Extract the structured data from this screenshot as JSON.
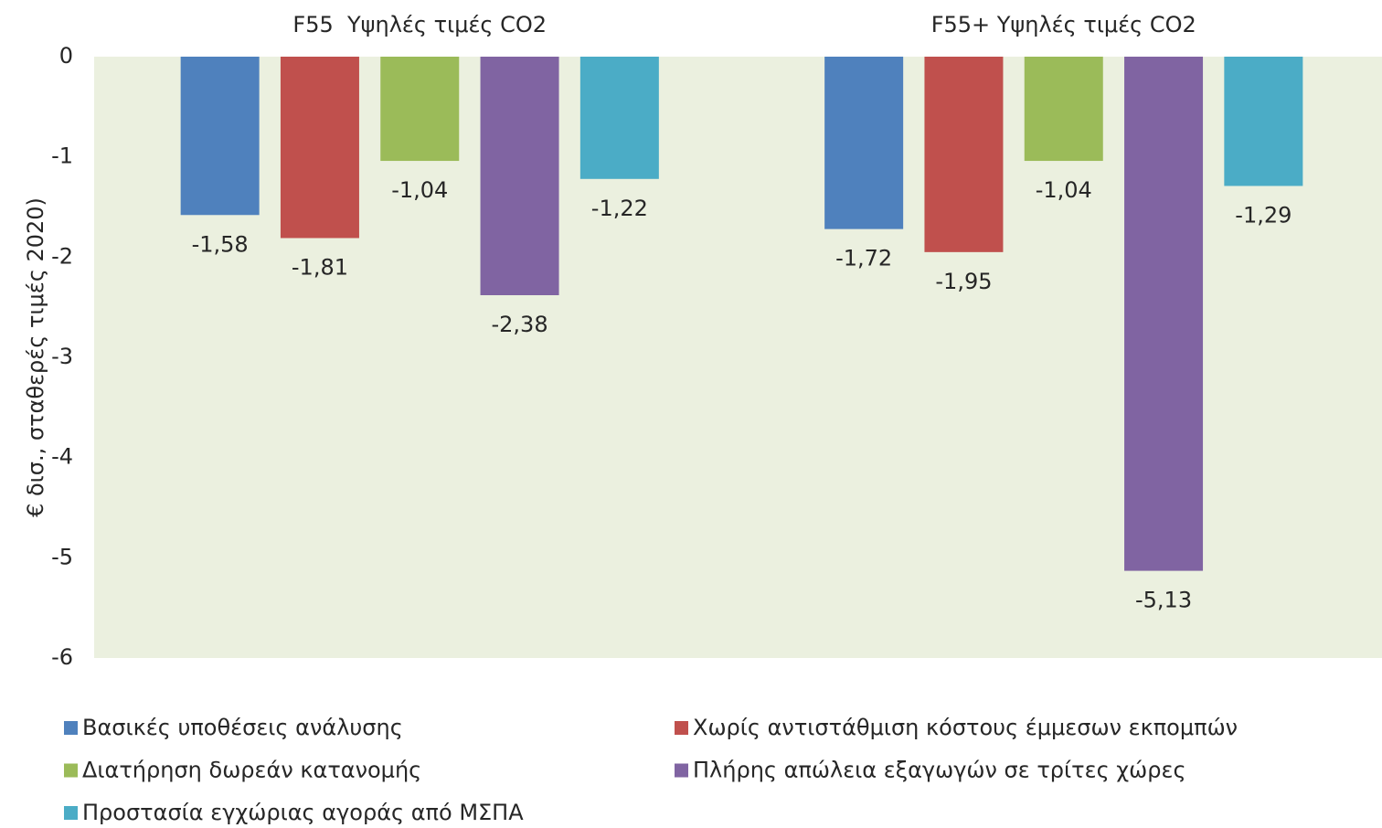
{
  "chart_data": {
    "type": "bar",
    "y_label": "€ δισ., σταθερές τιμές 2020)",
    "categories": [
      "F55  Υψηλές τιμές CO2",
      "F55+ Υψηλές τιμές CO2"
    ],
    "series": [
      {
        "name": "Βασικές υποθέσεις ανάλυσης",
        "color": "#4f81bd",
        "values": [
          -1.58,
          -1.72
        ],
        "value_labels": [
          "-1,58",
          "-1,72"
        ]
      },
      {
        "name": "Χωρίς αντιστάθμιση κόστους έμμεσων εκπομπών",
        "color": "#c0504d",
        "values": [
          -1.81,
          -1.95
        ],
        "value_labels": [
          "-1,81",
          "-1,95"
        ]
      },
      {
        "name": "Διατήρηση δωρεάν κατανομής",
        "color": "#9bbb59",
        "values": [
          -1.04,
          -1.04
        ],
        "value_labels": [
          "-1,04",
          "-1,04"
        ]
      },
      {
        "name": "Πλήρης απώλεια εξαγωγών σε τρίτες χώρες",
        "color": "#8064a2",
        "values": [
          -2.38,
          -5.13
        ],
        "value_labels": [
          "-2,38",
          "-5,13"
        ]
      },
      {
        "name": "Προστασία εγχώριας αγοράς από ΜΣΠΑ",
        "color": "#4bacc6",
        "values": [
          -1.22,
          -1.29
        ],
        "value_labels": [
          "-1,22",
          "-1,29"
        ]
      }
    ],
    "ylim": [
      -6,
      0
    ],
    "yticks": [
      0,
      -1,
      -2,
      -3,
      -4,
      -5,
      -6
    ],
    "plot_background": "#ebf0df",
    "grid": false
  }
}
